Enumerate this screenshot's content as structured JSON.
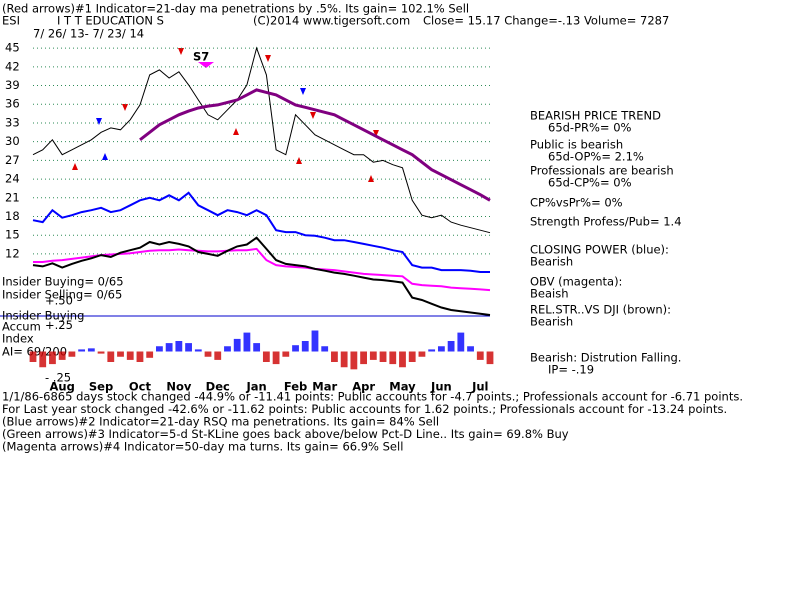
{
  "header": {
    "line1": "(Red arrows)#1 Indicator=21-day ma penetrations by .5%. Its gain= 102.1% Sell",
    "symbol": "ESI",
    "name": "I T T EDUCATION S",
    "copyright": "(C)2014 www.tigersoft.com",
    "quote": "Close=  15.17  Change=-.13 Volume= 7287",
    "dates": "7/ 26/ 13-  7/ 23/ 14",
    "annotation": "S7"
  },
  "left_labels": [
    "Insider Buying= 0/65",
    "Insider Selling= 0/65",
    "+.50",
    "Insider Buying",
    "Accum",
    "Index",
    "AI= 69/200"
  ],
  "right_panel": [
    {
      "text": "BEARISH PRICE TREND",
      "indent": false
    },
    {
      "text": "65d-PR%= 0%",
      "indent": true
    },
    {
      "text": "Public is bearish",
      "indent": false
    },
    {
      "text": "65d-OP%= 2.1%",
      "indent": true
    },
    {
      "text": "Professionals are bearish",
      "indent": false
    },
    {
      "text": "65d-CP%= 0%",
      "indent": true
    },
    {
      "text": "CP%vsPr%=  0%",
      "indent": false
    },
    {
      "text": "Strength Profess/Pub= 1.4",
      "indent": false
    },
    {
      "text": "CLOSING POWER (blue):",
      "indent": false
    },
    {
      "text": "Bearish",
      "indent": false
    },
    {
      "text": "OBV (magenta):",
      "indent": false
    },
    {
      "text": "Beaish",
      "indent": false
    },
    {
      "text": "REL.STR..VS DJI (brown):",
      "indent": false
    },
    {
      "text": "Bearish",
      "indent": false
    },
    {
      "text": "Bearish: Distrution Falling.",
      "indent": false
    },
    {
      "text": "IP= -.19",
      "indent": true
    }
  ],
  "notes": [
    "1/1/86-6865 days stock changed -44.9% or -11.41 points:  Public accounts for -4.7 points.;  Professionals account for -6.71 points.",
    " For Last year stock changed -42.6% or -11.62 points:  Public accounts for  1.62 points.;  Professionals account for -13.24 points.",
    "(Blue arrows)#2 Indicator=21-day RSQ ma penetrations. Its gain= 84% Sell",
    " (Green arrows)#3 Indicator=5-d St-KLine goes back above/below Pct-D Line.. Its gain= 69.8% Buy",
    "(Magenta arrows)#4 Indicator=50-day ma turns. Its gain= 66.9% Sell"
  ],
  "chart_data": [
    {
      "type": "line",
      "categories": [
        null,
        null,
        null,
        "Aug",
        null,
        null,
        null,
        "Sep",
        null,
        null,
        null,
        "Oct",
        null,
        null,
        null,
        "Nov",
        null,
        null,
        null,
        "Dec",
        null,
        null,
        null,
        "Jan",
        null,
        null,
        null,
        "Feb",
        null,
        null,
        "Mar",
        null,
        null,
        null,
        "Apr",
        null,
        null,
        null,
        "May",
        null,
        null,
        null,
        "Jun",
        null,
        null,
        null,
        "Jul",
        null
      ],
      "ylim": [
        1.4,
        46.3
      ],
      "yticks": [
        12,
        15,
        18,
        21,
        24,
        27,
        30,
        33,
        36,
        39,
        42,
        45
      ],
      "grid": true,
      "grid_color": "#2e8b57",
      "series": [
        {
          "color": "#000000",
          "width": 1,
          "values": [
            27.9,
            28.7,
            30.3,
            27.9,
            28.7,
            29.5,
            30.3,
            31.5,
            32.2,
            31.9,
            33.5,
            35.9,
            40.7,
            41.5,
            40.2,
            41.2,
            39.1,
            36.7,
            34.3,
            33.5,
            35.1,
            36.7,
            39.1,
            45,
            40.7,
            28.7,
            27.9,
            34.3,
            32.7,
            31.1,
            30.3,
            29.5,
            28.7,
            27.9,
            27.9,
            26.7,
            27,
            26.3,
            25.8,
            20.6,
            18.2,
            17.8,
            18.2,
            17.1,
            16.6,
            16.2,
            15.8,
            15.4
          ]
        },
        {
          "color": "#800080",
          "width": 3,
          "values": [
            null,
            null,
            null,
            null,
            null,
            null,
            null,
            null,
            null,
            null,
            null,
            30.3,
            31.5,
            32.7,
            33.5,
            34.3,
            34.9,
            35.4,
            35.7,
            35.9,
            36.3,
            36.7,
            37.5,
            38.3,
            37.9,
            37.5,
            36.7,
            35.9,
            35.5,
            35.1,
            34.7,
            34.3,
            33.5,
            32.7,
            31.9,
            31.1,
            30.3,
            29.5,
            28.7,
            27.9,
            26.7,
            25.5,
            24.7,
            23.9,
            23.1,
            22.3,
            21.5,
            20.6
          ]
        },
        {
          "color": "#0000ff",
          "width": 2,
          "values": [
            17.4,
            17.1,
            19.0,
            17.8,
            18.2,
            18.7,
            19.0,
            19.4,
            18.7,
            19.0,
            19.8,
            20.6,
            21.0,
            20.6,
            21.4,
            20.6,
            21.8,
            19.8,
            19.0,
            18.2,
            19.0,
            18.7,
            18.2,
            19.0,
            18.2,
            15.8,
            15.5,
            15.5,
            15.0,
            14.9,
            14.6,
            14.2,
            14.2,
            13.9,
            13.6,
            13.3,
            13.0,
            12.6,
            12.3,
            10.2,
            9.8,
            9.8,
            9.4,
            9.4,
            9.4,
            9.3,
            9.1,
            9.1
          ]
        },
        {
          "color": "#ff00ff",
          "width": 2,
          "values": [
            10.7,
            10.7,
            10.9,
            11.0,
            11.2,
            11.4,
            11.6,
            11.8,
            11.9,
            12.0,
            12.1,
            12.3,
            12.5,
            12.6,
            12.6,
            12.7,
            12.6,
            12.5,
            12.4,
            12.4,
            12.5,
            12.6,
            12.6,
            12.8,
            11.0,
            10.2,
            10.0,
            9.9,
            9.8,
            9.6,
            9.5,
            9.4,
            9.2,
            9.0,
            8.8,
            8.7,
            8.6,
            8.5,
            8.4,
            7.2,
            7.0,
            6.9,
            6.8,
            6.6,
            6.5,
            6.4,
            6.3,
            6.2
          ]
        },
        {
          "color": "#000000",
          "width": 2,
          "values": [
            10.2,
            10.0,
            10.5,
            9.8,
            10.4,
            10.9,
            11.3,
            11.8,
            11.5,
            12.2,
            12.6,
            13.0,
            13.9,
            13.5,
            13.9,
            13.6,
            13.2,
            12.3,
            12.0,
            11.7,
            12.5,
            13.2,
            13.5,
            14.6,
            12.8,
            11.0,
            10.4,
            10.2,
            10.0,
            9.6,
            9.3,
            9.0,
            8.8,
            8.5,
            8.2,
            7.9,
            7.8,
            7.6,
            7.4,
            5.0,
            4.6,
            4.0,
            3.4,
            3.0,
            2.8,
            2.6,
            2.4,
            2.2
          ]
        }
      ]
    },
    {
      "type": "bar",
      "ylim": [
        -0.3,
        0.3
      ],
      "yticks": [
        {
          "value": 0.25,
          "label": "+.25"
        },
        {
          "value": -0.25,
          "label": "- .25"
        }
      ],
      "pos_color": "#0000ff",
      "neg_color": "#cc0000",
      "values": [
        -0.1,
        -0.15,
        -0.12,
        -0.08,
        -0.05,
        0.02,
        0.03,
        -0.02,
        -0.1,
        -0.05,
        -0.08,
        -0.1,
        -0.06,
        0.05,
        0.08,
        0.1,
        0.08,
        0.02,
        -0.05,
        -0.08,
        0.05,
        0.12,
        0.18,
        0.08,
        -0.1,
        -0.12,
        -0.05,
        0.06,
        0.1,
        0.2,
        0.05,
        -0.1,
        -0.15,
        -0.17,
        -0.12,
        -0.08,
        -0.1,
        -0.12,
        -0.15,
        -0.1,
        -0.05,
        0.02,
        0.05,
        0.1,
        0.18,
        0.05,
        -0.08,
        -0.12
      ]
    }
  ]
}
